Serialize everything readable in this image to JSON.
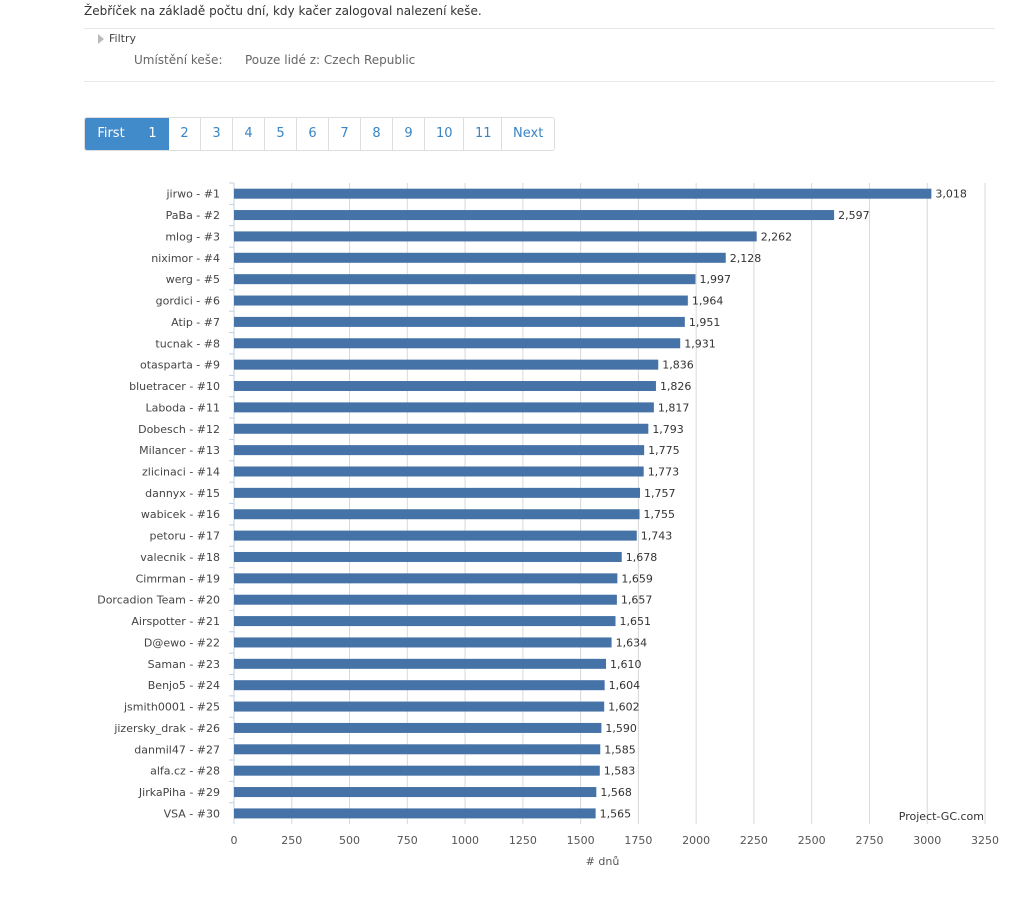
{
  "subtitle": "Žebříček na základě počtu dní, kdy kačer zalogoval nalezení keše.",
  "filters": {
    "legend": "Filtry",
    "location_label": "Umístění keše:",
    "location_value": "Pouze lidé z: Czech Republic"
  },
  "pagination": {
    "first": "First",
    "pages": [
      "1",
      "2",
      "3",
      "4",
      "5",
      "6",
      "7",
      "8",
      "9",
      "10",
      "11"
    ],
    "active": "1",
    "next": "Next"
  },
  "colors": {
    "bar": "#4572a7",
    "accent": "#428bca"
  },
  "chart_data": {
    "type": "bar",
    "orientation": "horizontal",
    "categories": [
      "jirwo - #1",
      "PaBa - #2",
      "mlog - #3",
      "niximor - #4",
      "werg - #5",
      "gordici - #6",
      "Atip - #7",
      "tucnak - #8",
      "otasparta - #9",
      "bluetracer - #10",
      "Laboda - #11",
      "Dobesch - #12",
      "Milancer - #13",
      "zlicinaci - #14",
      "dannyx - #15",
      "wabicek - #16",
      "petoru - #17",
      "valecnik - #18",
      "Cimrman - #19",
      "Dorcadion Team - #20",
      "Airspotter - #21",
      "D@ewo - #22",
      "Saman - #23",
      "Benjo5 - #24",
      "jsmith0001 - #25",
      "jizersky_drak - #26",
      "danmil47 - #27",
      "alfa.cz - #28",
      "JirkaPiha - #29",
      "VSA - #30"
    ],
    "values": [
      3018,
      2597,
      2262,
      2128,
      1997,
      1964,
      1951,
      1931,
      1836,
      1826,
      1817,
      1793,
      1775,
      1773,
      1757,
      1755,
      1743,
      1678,
      1659,
      1657,
      1651,
      1634,
      1610,
      1604,
      1602,
      1590,
      1585,
      1583,
      1568,
      1565
    ],
    "value_labels": [
      "3,018",
      "2,597",
      "2,262",
      "2,128",
      "1,997",
      "1,964",
      "1,951",
      "1,931",
      "1,836",
      "1,826",
      "1,817",
      "1,793",
      "1,775",
      "1,773",
      "1,757",
      "1,755",
      "1,743",
      "1,678",
      "1,659",
      "1,657",
      "1,651",
      "1,634",
      "1,610",
      "1,604",
      "1,602",
      "1,590",
      "1,585",
      "1,583",
      "1,568",
      "1,565"
    ],
    "xlabel": "# dnů",
    "xlim": [
      0,
      3250
    ],
    "xticks": [
      0,
      250,
      500,
      750,
      1000,
      1250,
      1500,
      1750,
      2000,
      2250,
      2500,
      2750,
      3000,
      3250
    ],
    "grid": true,
    "credit": "Project-GC.com"
  }
}
